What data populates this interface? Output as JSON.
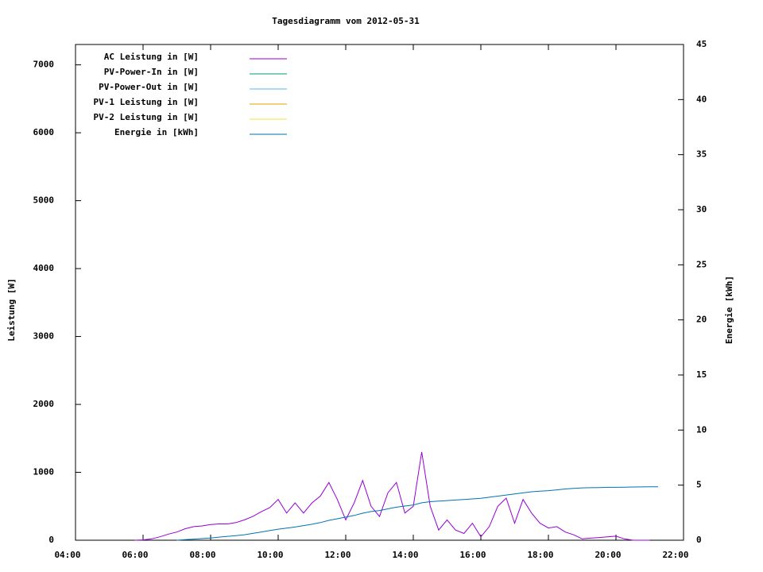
{
  "chart_data": {
    "type": "line",
    "title": "Tagesdiagramm vom 2012-05-31",
    "ylabel": "Leistung [W]",
    "y2label": "Energie [kWh]",
    "xlim": [
      4,
      22
    ],
    "xticks": [
      {
        "value": 4,
        "label": "04:00"
      },
      {
        "value": 6,
        "label": "06:00"
      },
      {
        "value": 8,
        "label": "08:00"
      },
      {
        "value": 10,
        "label": "10:00"
      },
      {
        "value": 12,
        "label": "12:00"
      },
      {
        "value": 14,
        "label": "14:00"
      },
      {
        "value": 16,
        "label": "16:00"
      },
      {
        "value": 18,
        "label": "18:00"
      },
      {
        "value": 20,
        "label": "20:00"
      },
      {
        "value": 22,
        "label": "22:00"
      }
    ],
    "ylim": [
      0,
      7300
    ],
    "yticks": [
      0,
      1000,
      2000,
      3000,
      4000,
      5000,
      6000,
      7000
    ],
    "y2lim": [
      0,
      45
    ],
    "y2ticks": [
      0,
      5,
      10,
      15,
      20,
      25,
      30,
      35,
      40,
      45
    ],
    "legend": "top-left",
    "x": [
      5.75,
      6,
      6.25,
      6.5,
      6.75,
      7,
      7.25,
      7.5,
      7.75,
      8,
      8.25,
      8.5,
      8.75,
      9,
      9.25,
      9.5,
      9.75,
      10,
      10.25,
      10.5,
      10.75,
      11,
      11.25,
      11.5,
      11.75,
      12,
      12.25,
      12.5,
      12.75,
      13,
      13.25,
      13.5,
      13.75,
      14,
      14.25,
      14.5,
      14.75,
      15,
      15.25,
      15.5,
      15.75,
      16,
      16.25,
      16.5,
      16.75,
      17,
      17.25,
      17.5,
      17.75,
      18,
      18.25,
      18.5,
      18.75,
      19,
      19.25,
      19.5,
      19.75,
      20,
      20.25,
      20.5,
      20.75,
      21,
      21.25
    ],
    "series": [
      {
        "name": "AC Leistung in [W]",
        "color": "#9400d3",
        "values": [
          0,
          5,
          20,
          50,
          90,
          120,
          170,
          200,
          210,
          230,
          240,
          240,
          260,
          300,
          350,
          420,
          480,
          600,
          400,
          550,
          400,
          550,
          650,
          850,
          600,
          300,
          550,
          880,
          500,
          350,
          700,
          850,
          400,
          500,
          1300,
          500,
          150,
          300,
          150,
          100,
          250,
          50,
          200,
          500,
          620,
          250,
          600,
          400,
          250,
          180,
          200,
          120,
          80,
          20,
          30,
          40,
          50,
          60,
          20,
          0,
          0,
          0,
          null
        ]
      },
      {
        "name": "PV-Power-In in [W]",
        "color": "#009e73",
        "values": [
          null,
          null,
          null,
          null,
          null,
          null,
          null,
          null,
          null,
          null,
          null,
          null,
          null,
          null,
          null,
          null,
          null,
          null,
          null,
          null,
          null,
          null,
          null,
          null,
          null,
          null,
          null,
          null,
          null,
          null,
          null,
          null,
          null,
          null,
          null,
          null,
          null,
          null,
          null,
          null,
          null,
          null,
          null,
          null,
          null,
          null,
          null,
          null,
          null,
          null,
          null,
          null,
          null,
          null,
          null,
          null,
          null,
          null,
          null,
          null,
          null,
          null,
          null
        ]
      },
      {
        "name": "PV-Power-Out in [W]",
        "color": "#56b4e9",
        "values": [
          null,
          null,
          null,
          null,
          null,
          null,
          null,
          null,
          null,
          null,
          null,
          null,
          null,
          null,
          null,
          null,
          null,
          null,
          null,
          null,
          null,
          null,
          null,
          null,
          null,
          null,
          null,
          null,
          null,
          null,
          null,
          null,
          null,
          null,
          null,
          null,
          null,
          null,
          null,
          null,
          null,
          null,
          null,
          null,
          null,
          null,
          null,
          null,
          null,
          null,
          null,
          null,
          null,
          null,
          null,
          null,
          null,
          null,
          null,
          null,
          null,
          null,
          null
        ]
      },
      {
        "name": "PV-1 Leistung in [W]",
        "color": "#e69f00",
        "values": [
          null,
          null,
          null,
          null,
          null,
          null,
          null,
          null,
          null,
          null,
          null,
          null,
          null,
          null,
          null,
          null,
          null,
          null,
          null,
          null,
          null,
          null,
          null,
          null,
          null,
          null,
          null,
          null,
          null,
          null,
          null,
          null,
          null,
          null,
          null,
          null,
          null,
          null,
          null,
          null,
          null,
          null,
          null,
          null,
          null,
          null,
          null,
          null,
          null,
          null,
          null,
          null,
          null,
          null,
          null,
          null,
          null,
          null,
          null,
          null,
          null,
          null,
          null
        ]
      },
      {
        "name": "PV-2 Leistung in [W]",
        "color": "#f0e442",
        "values": [
          null,
          null,
          null,
          null,
          null,
          null,
          null,
          null,
          null,
          null,
          null,
          null,
          null,
          null,
          null,
          null,
          null,
          null,
          null,
          null,
          null,
          null,
          null,
          null,
          null,
          null,
          null,
          null,
          null,
          null,
          null,
          null,
          null,
          null,
          null,
          null,
          null,
          null,
          null,
          null,
          null,
          null,
          null,
          null,
          null,
          null,
          null,
          null,
          null,
          null,
          null,
          null,
          null,
          null,
          null,
          null,
          null,
          null,
          null,
          null,
          null,
          null,
          null
        ]
      },
      {
        "name": "Energie in [kWh]",
        "color": "#0072b2",
        "axis": "y2",
        "values": [
          null,
          null,
          null,
          null,
          null,
          0,
          0.05,
          0.1,
          0.15,
          0.2,
          0.28,
          0.35,
          0.42,
          0.5,
          0.62,
          0.75,
          0.87,
          1.0,
          1.1,
          1.2,
          1.33,
          1.45,
          1.6,
          1.8,
          1.95,
          2.1,
          2.25,
          2.45,
          2.6,
          2.7,
          2.85,
          3.0,
          3.1,
          3.2,
          3.4,
          3.5,
          3.55,
          3.6,
          3.65,
          3.7,
          3.75,
          3.8,
          3.9,
          4.0,
          4.1,
          4.2,
          4.3,
          4.4,
          4.45,
          4.5,
          4.57,
          4.65,
          4.7,
          4.75,
          4.77,
          4.78,
          4.8,
          4.8,
          4.82,
          4.83,
          4.84,
          4.85,
          4.85
        ]
      }
    ]
  }
}
